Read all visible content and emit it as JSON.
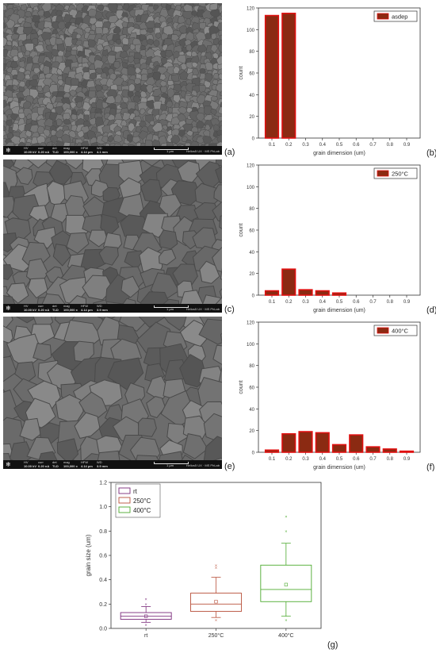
{
  "sem_panels": [
    {
      "id": "a",
      "label": "(a)",
      "hv": "10.00 kV",
      "curr": "0.20 nA",
      "det": "TLD",
      "mag": "100,000 x",
      "hfw": "4.14 µm",
      "wd": "4.1 mm",
      "scale": "1 µm",
      "brand": "Helios5 UX · MS PhLab"
    },
    {
      "id": "c",
      "label": "(c)",
      "hv": "10.00 kV",
      "curr": "0.20 nA",
      "det": "TLD",
      "mag": "100,000 x",
      "hfw": "4.14 µm",
      "wd": "3.9 mm",
      "scale": "1 µm",
      "brand": "Helios5 UX · MS PhLab"
    },
    {
      "id": "e",
      "label": "(e)",
      "hv": "10.00 kV",
      "curr": "0.20 nA",
      "det": "TLD",
      "mag": "100,000 x",
      "hfw": "4.14 µm",
      "wd": "3.9 mm",
      "scale": "1 µm",
      "brand": "Helios5 UX · MS PhLab"
    }
  ],
  "sem_headers": {
    "hv": "HV",
    "curr": "curr",
    "det": "det",
    "mag": "mag",
    "hfw": "HFW",
    "wd": "WD"
  },
  "chart_data": [
    {
      "id": "b",
      "type": "bar",
      "panel_label": "(b)",
      "xlabel": "grain dimension (um)",
      "ylabel": "count",
      "categories": [
        "0.1",
        "0.2",
        "0.3",
        "0.4",
        "0.5",
        "0.6",
        "0.7",
        "0.8",
        "0.9"
      ],
      "series": [
        {
          "name": "asdep",
          "values": [
            113,
            115,
            0,
            0,
            0,
            0,
            0,
            0,
            0
          ]
        }
      ],
      "ylim": [
        0,
        120
      ],
      "yticks": [
        0,
        20,
        40,
        60,
        80,
        100,
        120
      ],
      "legend": "top-right",
      "colors": {
        "bar": "#8b2a12",
        "edge": "#e01010"
      }
    },
    {
      "id": "d",
      "type": "bar",
      "panel_label": "(d)",
      "xlabel": "grain dimension (um)",
      "ylabel": "count",
      "categories": [
        "0.1",
        "0.2",
        "0.3",
        "0.4",
        "0.5",
        "0.6",
        "0.7",
        "0.8",
        "0.9"
      ],
      "series": [
        {
          "name": "250°C",
          "values": [
            4,
            24,
            5,
            4,
            2,
            0,
            0,
            0,
            0
          ]
        }
      ],
      "ylim": [
        0,
        120
      ],
      "yticks": [
        0,
        20,
        40,
        60,
        80,
        100,
        120
      ],
      "legend": "top-right",
      "colors": {
        "bar": "#8b2a12",
        "edge": "#e01010"
      }
    },
    {
      "id": "f",
      "type": "bar",
      "panel_label": "(f)",
      "xlabel": "grain dimension (um)",
      "ylabel": "count",
      "categories": [
        "0.1",
        "0.2",
        "0.3",
        "0.4",
        "0.5",
        "0.6",
        "0.7",
        "0.8",
        "0.9"
      ],
      "series": [
        {
          "name": "400°C",
          "values": [
            2,
            17,
            19,
            18,
            7,
            16,
            5,
            3,
            1
          ]
        }
      ],
      "ylim": [
        0,
        120
      ],
      "yticks": [
        0,
        20,
        40,
        60,
        80,
        100,
        120
      ],
      "legend": "top-right",
      "colors": {
        "bar": "#8b2a12",
        "edge": "#e01010"
      }
    },
    {
      "id": "g",
      "type": "box",
      "panel_label": "(g)",
      "xlabel": "",
      "ylabel": "grain size (um)",
      "categories": [
        "rt",
        "250°C",
        "400°C"
      ],
      "ylim": [
        0.0,
        1.2
      ],
      "yticks": [
        0.0,
        0.2,
        0.4,
        0.6,
        0.8,
        1.0,
        1.2
      ],
      "legend": "top-left",
      "series": [
        {
          "name": "rt",
          "color": "#7a2a7a",
          "q1": 0.075,
          "median": 0.1,
          "q3": 0.13,
          "mean": 0.1,
          "whisker_low": 0.05,
          "whisker_high": 0.18,
          "outliers": [
            0.03,
            0.2,
            0.24
          ]
        },
        {
          "name": "250°C",
          "color": "#b8503a",
          "q1": 0.14,
          "median": 0.2,
          "q3": 0.29,
          "mean": 0.22,
          "whisker_low": 0.09,
          "whisker_high": 0.42,
          "outliers": [
            0.07,
            0.5,
            0.52
          ]
        },
        {
          "name": "400°C",
          "color": "#4caa2e",
          "q1": 0.22,
          "median": 0.32,
          "q3": 0.52,
          "mean": 0.36,
          "whisker_low": 0.1,
          "whisker_high": 0.7,
          "outliers": [
            0.07,
            0.8,
            0.92
          ]
        }
      ]
    }
  ]
}
